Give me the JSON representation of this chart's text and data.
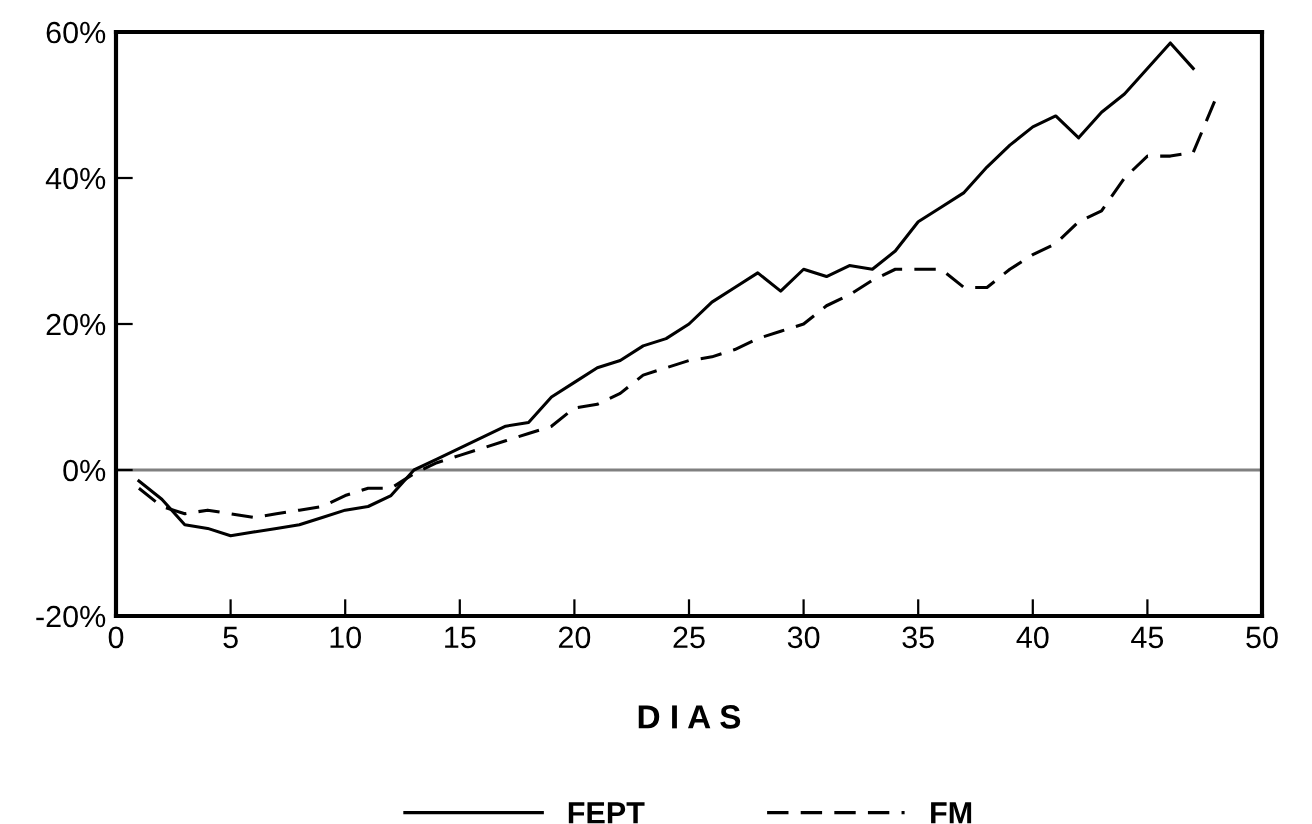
{
  "chart_data": {
    "type": "line",
    "xlabel": "D I A S",
    "x": [
      1,
      2,
      3,
      4,
      5,
      6,
      7,
      8,
      9,
      10,
      11,
      12,
      13,
      14,
      15,
      16,
      17,
      18,
      19,
      20,
      21,
      22,
      23,
      24,
      25,
      26,
      27,
      28,
      29,
      30,
      31,
      32,
      33,
      34,
      35,
      36,
      37,
      38,
      39,
      40,
      41,
      42,
      43,
      44,
      45,
      46,
      47,
      48
    ],
    "series": [
      {
        "name": "FEPT",
        "color": "#000000",
        "line_style": "solid",
        "values": [
          -1.5,
          -4,
          -7.5,
          -8,
          -9,
          -8.5,
          -8,
          -7.5,
          -6.5,
          -5.5,
          -5,
          -3.5,
          0,
          1.5,
          3,
          4.5,
          6,
          6.5,
          10,
          12,
          14,
          15,
          17,
          18,
          20,
          23,
          25,
          27,
          24.5,
          27.5,
          26.5,
          28,
          27.5,
          30,
          34,
          36,
          38,
          41.5,
          44.5,
          47,
          48.5,
          45.5,
          49,
          51.5,
          55,
          58.5,
          55,
          null
        ]
      },
      {
        "name": "FM",
        "color": "#000000",
        "line_style": "dashed",
        "values": [
          -2.5,
          -5,
          -6,
          -5.5,
          -6,
          -6.5,
          -6,
          -5.5,
          -5,
          -3.5,
          -2.5,
          -2.5,
          -0.5,
          1,
          2,
          3,
          4,
          5,
          6,
          8.5,
          9,
          10.5,
          13,
          14,
          15,
          15.5,
          16.5,
          18,
          19,
          20,
          22.5,
          24,
          26,
          27.5,
          27.5,
          27.5,
          25,
          25,
          27.5,
          29.5,
          31,
          34,
          35.5,
          40,
          43,
          43,
          43.5,
          51
        ]
      }
    ],
    "xlim": [
      0,
      50
    ],
    "xticks": [
      0,
      5,
      10,
      15,
      20,
      25,
      30,
      35,
      40,
      45,
      50
    ],
    "ylim": [
      -20,
      60
    ],
    "yticks": [
      {
        "value": -20,
        "label": "-20%"
      },
      {
        "value": 0,
        "label": "0%"
      },
      {
        "value": 20,
        "label": "20%"
      },
      {
        "value": 40,
        "label": "40%"
      },
      {
        "value": 60,
        "label": "60%"
      }
    ],
    "ref_lines": [
      {
        "axis": "y",
        "value": 0,
        "color": "#808080"
      }
    ],
    "grid": false,
    "legend": "bottom",
    "marker": "none"
  }
}
